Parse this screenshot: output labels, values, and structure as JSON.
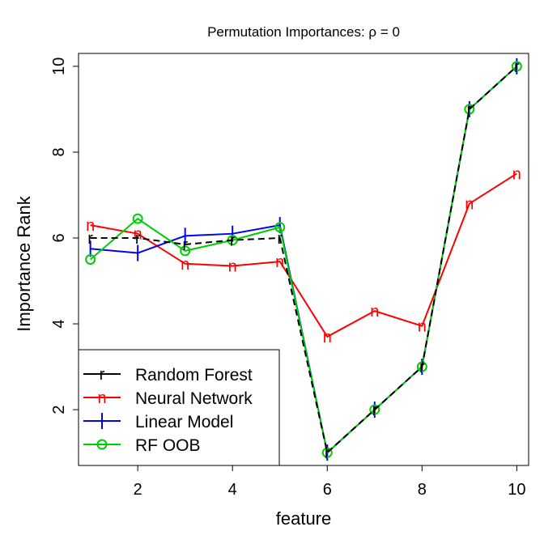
{
  "chart_data": {
    "type": "line",
    "title": "Permutation Importances: ρ = 0",
    "xlabel": "feature",
    "ylabel": "Importance Rank",
    "x": [
      1,
      2,
      3,
      4,
      5,
      6,
      7,
      8,
      9,
      10
    ],
    "xlim": [
      0.75,
      10.25
    ],
    "ylim": [
      0.7,
      10.3
    ],
    "xticks": [
      "2",
      "4",
      "6",
      "8",
      "10"
    ],
    "yticks": [
      "2",
      "4",
      "6",
      "8",
      "10"
    ],
    "legend_position": "bottom-left",
    "series": [
      {
        "name": "Random Forest",
        "marker": "r",
        "color": "#000000",
        "dash": true,
        "values": [
          6.0,
          6.0,
          5.85,
          5.95,
          6.0,
          1.0,
          2.0,
          3.0,
          9.0,
          10.0
        ]
      },
      {
        "name": "Neural Network",
        "marker": "n",
        "color": "#ff0000",
        "dash": false,
        "values": [
          6.3,
          6.1,
          5.4,
          5.35,
          5.45,
          3.7,
          4.3,
          3.95,
          6.8,
          7.5
        ]
      },
      {
        "name": "Linear Model",
        "marker": "l",
        "color": "#0000ff",
        "dash": false,
        "values": [
          5.75,
          5.65,
          6.05,
          6.1,
          6.3,
          1.0,
          2.0,
          3.0,
          9.0,
          10.0
        ]
      },
      {
        "name": "RF OOB",
        "marker": "o",
        "color": "#00cd00",
        "dash": false,
        "values": [
          5.5,
          6.45,
          5.7,
          5.95,
          6.25,
          1.0,
          2.0,
          3.0,
          9.0,
          10.0
        ]
      }
    ]
  }
}
